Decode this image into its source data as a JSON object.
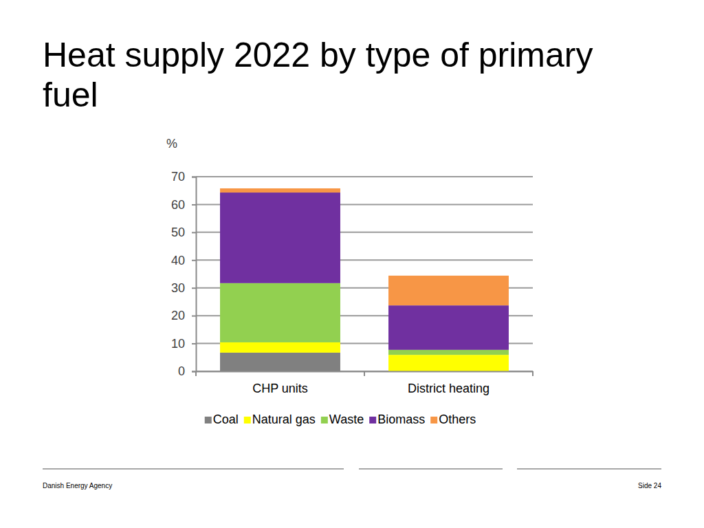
{
  "chart_data": {
    "type": "bar",
    "stacked": true,
    "title": "Heat supply 2022 by type of primary fuel",
    "ylabel": "%",
    "categories": [
      "CHP units",
      "District heating"
    ],
    "series": [
      {
        "name": "Coal",
        "color": "#808080",
        "values": [
          6.7,
          0
        ]
      },
      {
        "name": "Natural gas",
        "color": "#ffff00",
        "values": [
          3.7,
          5.9
        ]
      },
      {
        "name": "Waste",
        "color": "#92d050",
        "values": [
          21.3,
          1.8
        ]
      },
      {
        "name": "Biomass",
        "color": "#7030a0",
        "values": [
          32.6,
          16.0
        ]
      },
      {
        "name": "Others",
        "color": "#f79646",
        "values": [
          1.5,
          10.7
        ]
      }
    ],
    "ylim": [
      0,
      70
    ],
    "yticks": [
      0,
      10,
      20,
      30,
      40,
      50,
      60,
      70
    ],
    "grid": true,
    "legend": "bottom"
  },
  "footer": {
    "left": "Danish Energy Agency",
    "right": "Side 24"
  }
}
